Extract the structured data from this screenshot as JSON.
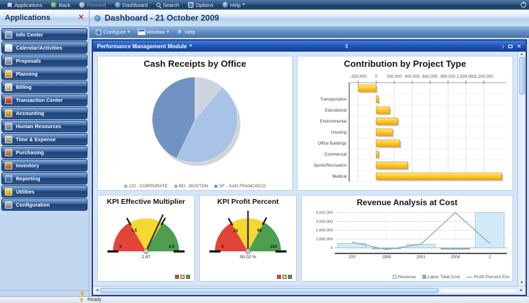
{
  "topbar": {
    "items": [
      {
        "label": "Applications"
      },
      {
        "label": "Back"
      },
      {
        "label": "Forward"
      },
      {
        "label": "Dashboard"
      },
      {
        "label": "Search"
      },
      {
        "label": "Options"
      },
      {
        "label": "Help"
      }
    ]
  },
  "sidebar": {
    "title": "Applications",
    "items": [
      {
        "label": "Info Center",
        "icon_color": "#7d9cc4"
      },
      {
        "label": "Calendar/Activities",
        "icon_color": "#e8eef5"
      },
      {
        "label": "Proposals",
        "icon_color": "#98a2b2"
      },
      {
        "label": "Planning",
        "icon_color": "#e2b23c"
      },
      {
        "label": "Billing",
        "icon_color": "#d9c9a6"
      },
      {
        "label": "Transaction Center",
        "icon_color": "#c64a42"
      },
      {
        "label": "Accounting",
        "icon_color": "#d8a22e"
      },
      {
        "label": "Human Resources",
        "icon_color": "#8b93a4"
      },
      {
        "label": "Time & Expense",
        "icon_color": "#b3ab92"
      },
      {
        "label": "Purchasing",
        "icon_color": "#b08a59"
      },
      {
        "label": "Inventory",
        "icon_color": "#c77a36"
      },
      {
        "label": "Reporting",
        "icon_color": "#4a77bd"
      },
      {
        "label": "Utilities",
        "icon_color": "#e6c22a"
      },
      {
        "label": "Configuration",
        "icon_color": "#9aa19b"
      }
    ]
  },
  "main_header": {
    "title": "Dashboard - 21 October 2009"
  },
  "toolbar": {
    "items": [
      {
        "label": "Configure"
      },
      {
        "label": "Window"
      },
      {
        "label": "Help"
      }
    ]
  },
  "module": {
    "title": "Performance Management Module"
  },
  "statusbar": {
    "text": "Ready"
  },
  "colors": {
    "accent_blue": "#2a5ca8",
    "module_header": "#1c52b4",
    "card_border": "#bad0e8",
    "content_bg": "#d6e6f8",
    "bar_gold": "#ffcf3a",
    "red": "#e2443a",
    "yellow": "#f5d832",
    "green": "#4e9e50"
  },
  "chart_data": [
    {
      "type": "pie",
      "title": "Cash Receipts by Office",
      "labels": [
        "CO - CORPORATE",
        "BO - BOSTON",
        "SF - SAN FRANCISCO"
      ],
      "values": [
        11,
        46,
        43
      ],
      "colors": [
        "#ccd4df",
        "#a8c3e5",
        "#7193c3"
      ],
      "legend_position": "bottom"
    },
    {
      "type": "bar",
      "orientation": "horizontal",
      "title": "Contribution by Project Type",
      "categories": [
        "",
        "Transportation",
        "Educational",
        "Environmental",
        "Housing",
        "Office Buildings",
        "Commercial",
        "Sports/Recreation",
        "Medical"
      ],
      "values": [
        -200000,
        25000,
        150000,
        240000,
        180000,
        265000,
        25000,
        350000,
        1400000
      ],
      "xlim": [
        -300000,
        1450000
      ],
      "xticks": [
        -200000,
        0,
        200000,
        400000,
        600000,
        800000,
        1000000,
        1200000
      ],
      "bar_color": "#ffcf3a",
      "grid": true
    },
    {
      "type": "gauge",
      "title": "KPI Effective Multiplier",
      "min": 0,
      "max": 4.5,
      "zones": [
        {
          "to": 1.5,
          "color": "#e2443a"
        },
        {
          "to": 3,
          "color": "#f5d832"
        },
        {
          "to": 4.5,
          "color": "#4e9e50"
        }
      ],
      "value": 2.87,
      "value_label": "2.87",
      "tick_labels": [
        {
          "value": 0,
          "text": "0"
        },
        {
          "value": 1.5,
          "text": "1.5"
        },
        {
          "value": 4.5,
          "text": "4.5"
        }
      ]
    },
    {
      "type": "gauge",
      "title": "KPI Profit Percent",
      "min": 0,
      "max": 100,
      "zones": [
        {
          "to": 33,
          "color": "#e2443a"
        },
        {
          "to": 66,
          "color": "#f5d832"
        },
        {
          "to": 100,
          "color": "#4e9e50"
        }
      ],
      "value": 50.02,
      "value_label": "50.02 %",
      "tick_labels": [
        {
          "value": 0,
          "text": "0"
        },
        {
          "value": 33,
          "text": "33"
        },
        {
          "value": 66,
          "text": "66"
        },
        {
          "value": 100,
          "text": "100"
        }
      ]
    },
    {
      "type": "mixed",
      "title": "Revenue Analysis at Cost",
      "x_labels": [
        "200",
        "1999",
        "2001",
        "2004",
        "2"
      ],
      "ylim": [
        -400000,
        4200000
      ],
      "yticks": [
        0,
        1000000,
        2000000,
        3000000,
        4000000
      ],
      "series": [
        {
          "name": "Revenue",
          "chart": "bar",
          "color": "#d2eaf8",
          "values": [
            500000,
            0,
            400000,
            0,
            4000000
          ]
        },
        {
          "name": "Labor Total Cost",
          "chart": "bar",
          "color": "#8ea3ad",
          "values": [
            0,
            -120000,
            0,
            -170000,
            0
          ]
        },
        {
          "name": "Profit Percent Exc",
          "chart": "line",
          "color": "#94aebc",
          "values": [
            650000,
            -200000,
            400000,
            4000000,
            500000
          ]
        }
      ],
      "legend": [
        "Revenue",
        "Labor Total Cost",
        "Profit Percent Exc"
      ]
    }
  ]
}
